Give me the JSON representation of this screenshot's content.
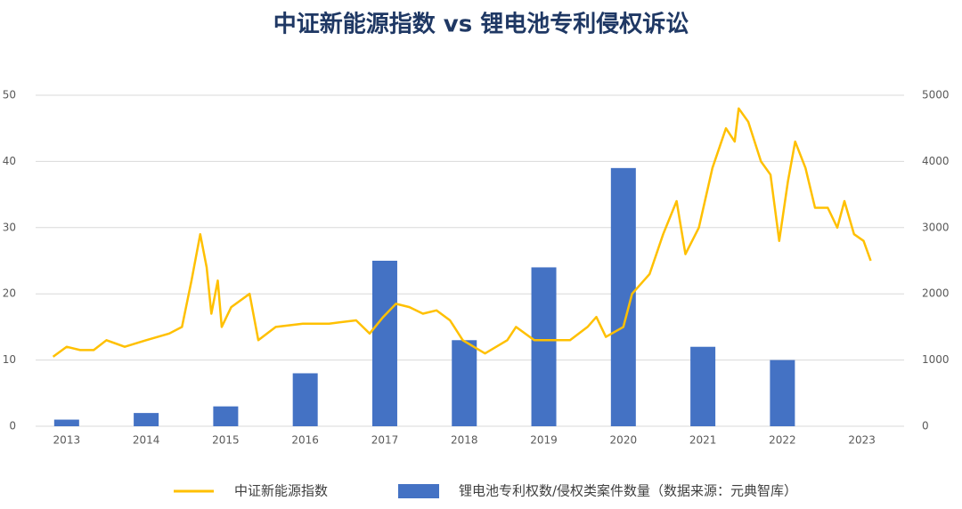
{
  "chart_data": {
    "type": "bar-line",
    "title": "中证新能源指数 vs 锂电池专利侵权诉讼",
    "xlim": [
      2012.61,
      2023.53
    ],
    "xticks": [
      2013,
      2014,
      2015,
      2016,
      2017,
      2018,
      2019,
      2020,
      2021,
      2022,
      2023
    ],
    "ylim": [
      0,
      50
    ],
    "yticks": [
      0,
      10,
      20,
      30,
      40,
      50
    ],
    "y2lim": [
      0,
      5000
    ],
    "y2ticks": [
      0,
      1000,
      2000,
      3000,
      4000,
      5000
    ],
    "grid": true,
    "legend": "bottom",
    "series": [
      {
        "name": "中证新能源指数",
        "type": "line",
        "axis": "y2",
        "color": "#ffc000",
        "x": [
          2012.83,
          2013.0,
          2013.17,
          2013.34,
          2013.5,
          2013.73,
          2014.0,
          2014.29,
          2014.45,
          2014.57,
          2014.68,
          2014.76,
          2014.82,
          2014.9,
          2014.95,
          2015.07,
          2015.3,
          2015.41,
          2015.63,
          2015.97,
          2016.3,
          2016.64,
          2016.81,
          2016.98,
          2017.14,
          2017.31,
          2017.48,
          2017.65,
          2017.82,
          2017.98,
          2018.26,
          2018.54,
          2018.65,
          2018.88,
          2019.33,
          2019.55,
          2019.66,
          2019.78,
          2020.0,
          2020.11,
          2020.33,
          2020.5,
          2020.67,
          2020.78,
          2020.95,
          2021.12,
          2021.29,
          2021.4,
          2021.45,
          2021.57,
          2021.73,
          2021.85,
          2021.96,
          2022.07,
          2022.16,
          2022.29,
          2022.41,
          2022.57,
          2022.69,
          2022.78,
          2022.9,
          2023.02,
          2023.11
        ],
        "values": [
          1050,
          1200,
          1150,
          1150,
          1300,
          1200,
          1300,
          1400,
          1500,
          2200,
          2900,
          2400,
          1700,
          2200,
          1500,
          1800,
          2000,
          1300,
          1500,
          1550,
          1550,
          1600,
          1400,
          1650,
          1850,
          1800,
          1700,
          1750,
          1600,
          1300,
          1100,
          1300,
          1500,
          1300,
          1300,
          1500,
          1650,
          1350,
          1500,
          2000,
          2300,
          2900,
          3400,
          2600,
          3000,
          3900,
          4500,
          4300,
          4800,
          4600,
          4000,
          3800,
          2800,
          3700,
          4300,
          3900,
          3300,
          3300,
          3000,
          3400,
          2900,
          2800,
          2500
        ]
      },
      {
        "name": "锂电池专利权数/侵权类案件数量（数据来源：元典智库）",
        "type": "bar",
        "axis": "y",
        "color": "#4472c4",
        "x": [
          2013,
          2014,
          2015,
          2016,
          2017,
          2018,
          2019,
          2020,
          2021,
          2022
        ],
        "values": [
          1,
          2,
          3,
          8,
          25,
          13,
          24,
          39,
          12,
          10
        ]
      }
    ]
  }
}
